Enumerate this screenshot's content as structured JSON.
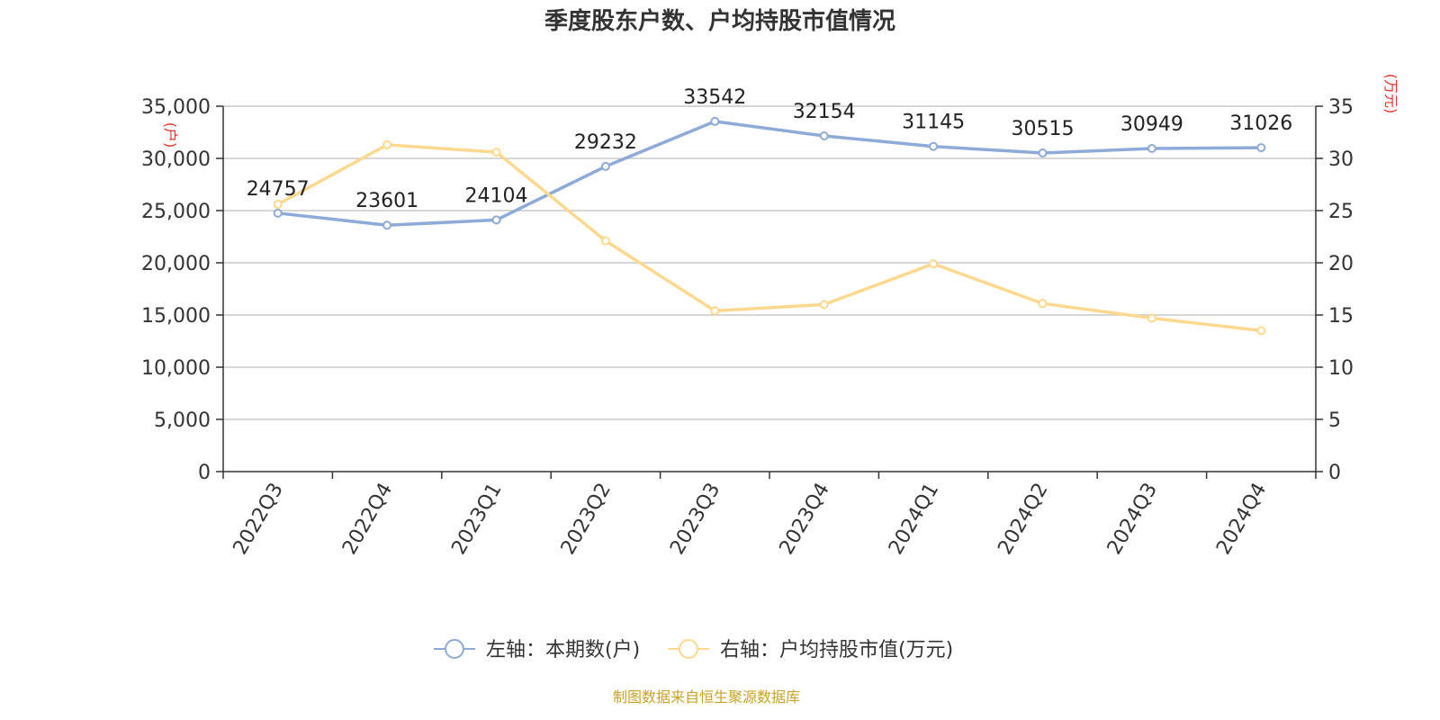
{
  "chart_data": {
    "type": "line",
    "title": "季度股东户数、户均持股市值情况",
    "categories": [
      "2022Q3",
      "2022Q4",
      "2023Q1",
      "2023Q2",
      "2023Q3",
      "2023Q4",
      "2024Q1",
      "2024Q2",
      "2024Q3",
      "2024Q4"
    ],
    "left_axis": {
      "unit": "(户)",
      "ylim": [
        0,
        35000
      ],
      "ticks": [
        "0",
        "5,000",
        "10,000",
        "15,000",
        "20,000",
        "25,000",
        "30,000",
        "35,000"
      ]
    },
    "right_axis": {
      "unit": "(万元)",
      "ylim": [
        0,
        35
      ],
      "ticks": [
        "0",
        "5",
        "10",
        "15",
        "20",
        "25",
        "30",
        "35"
      ]
    },
    "grid": true,
    "legend_position": "bottom-center",
    "series": [
      {
        "name": "左轴：本期数(户)",
        "axis": "left",
        "color": "#8eaad8",
        "values": [
          24757,
          23601,
          24104,
          29232,
          33542,
          32154,
          31145,
          30515,
          30949,
          31026
        ],
        "data_labels": [
          "24757",
          "23601",
          "24104",
          "29232",
          "33542",
          "32154",
          "31145",
          "30515",
          "30949",
          "31026"
        ]
      },
      {
        "name": "右轴：户均持股市值(万元)",
        "axis": "right",
        "color": "#fcd98f",
        "values": [
          25.6,
          31.3,
          30.6,
          22.1,
          15.4,
          16.0,
          19.9,
          16.1,
          14.7,
          13.5
        ]
      }
    ],
    "source": "制图数据来自恒生聚源数据库"
  }
}
